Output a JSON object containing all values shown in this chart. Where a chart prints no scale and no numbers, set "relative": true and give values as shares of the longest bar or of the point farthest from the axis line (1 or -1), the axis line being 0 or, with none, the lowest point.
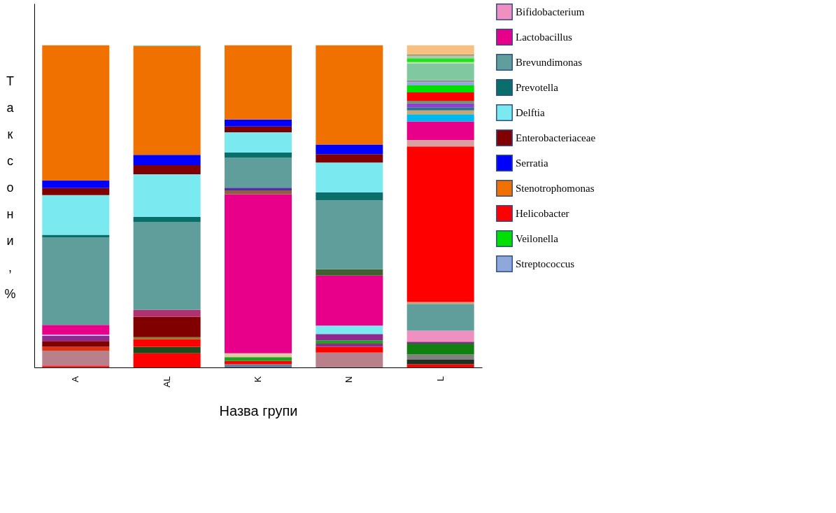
{
  "chart_data": {
    "type": "bar",
    "stacked": true,
    "relative": true,
    "xlabel": "Назва групи",
    "ylabel": "Таксони, %",
    "legend": "top right",
    "grid": false,
    "categories": [
      "A",
      "AL",
      "K",
      "N",
      "L"
    ],
    "series": [
      {
        "color": "#ff2020",
        "values": [
          0.006,
          null,
          null,
          null,
          null
        ]
      },
      {
        "color": "#b8808a",
        "values": [
          0.046,
          null,
          null,
          null,
          null
        ]
      },
      {
        "color": "#e03010",
        "values": [
          0.012,
          null,
          null,
          null,
          null
        ]
      },
      {
        "color": "#800000",
        "values": [
          0.018,
          null,
          null,
          null,
          null
        ]
      },
      {
        "color": "#902890",
        "values": [
          0.016,
          null,
          null,
          null,
          null
        ]
      },
      {
        "color": "#c0b0f0",
        "values": [
          0.004,
          null,
          null,
          null,
          null
        ]
      },
      {
        "color": "#ff0000",
        "values": [
          null,
          0.044,
          null,
          null,
          null
        ]
      },
      {
        "color": "#1a4a1a",
        "values": [
          null,
          0.02,
          null,
          null,
          null
        ]
      },
      {
        "color": "#ff0000",
        "values": [
          null,
          0.024,
          null,
          null,
          null
        ]
      },
      {
        "color": "#808030",
        "values": [
          null,
          0.006,
          null,
          null,
          null
        ]
      },
      {
        "color": "#800000",
        "values": [
          null,
          0.063,
          null,
          null,
          null
        ]
      },
      {
        "color": "#b03070",
        "values": [
          null,
          0.022,
          null,
          null,
          null
        ]
      },
      {
        "color": "#6080a0",
        "values": [
          null,
          null,
          0.01,
          null,
          null
        ]
      },
      {
        "color": "#ff0000",
        "values": [
          null,
          null,
          0.01,
          null,
          null
        ]
      },
      {
        "color": "#20a020",
        "values": [
          null,
          null,
          0.012,
          null,
          null
        ]
      },
      {
        "color": "#e0c8a0",
        "values": [
          null,
          null,
          0.012,
          null,
          null
        ]
      },
      {
        "color": "#b8808a",
        "values": [
          null,
          null,
          null,
          0.046,
          null
        ]
      },
      {
        "color": "#ff0000",
        "values": [
          null,
          null,
          null,
          0.018,
          null
        ]
      },
      {
        "color": "#902890",
        "values": [
          null,
          null,
          null,
          0.01,
          null
        ]
      },
      {
        "color": "#20a020",
        "values": [
          null,
          null,
          null,
          0.01,
          null
        ]
      },
      {
        "color": "#902890",
        "values": [
          null,
          null,
          null,
          0.02,
          null
        ]
      },
      {
        "color": "#7aeaf0",
        "values": [
          null,
          null,
          null,
          0.026,
          null
        ]
      },
      {
        "color": "#ff0000",
        "values": [
          null,
          null,
          null,
          null,
          0.01
        ]
      },
      {
        "color": "#203020",
        "values": [
          null,
          null,
          null,
          null,
          0.014
        ]
      },
      {
        "color": "#808080",
        "values": [
          null,
          null,
          null,
          null,
          0.016
        ]
      },
      {
        "color": "#108010",
        "values": [
          null,
          null,
          null,
          null,
          0.034
        ]
      },
      {
        "color": "#803080",
        "values": [
          null,
          null,
          null,
          null,
          0.006
        ]
      },
      {
        "name": "Bifidobacterium",
        "color": "#f090c0",
        "values": [
          null,
          null,
          null,
          null,
          0.034
        ]
      },
      {
        "color": "#5f9e9a",
        "values": [
          null,
          null,
          null,
          null,
          0.083
        ]
      },
      {
        "color": "#d0a080",
        "values": [
          null,
          null,
          null,
          null,
          0.006
        ]
      },
      {
        "name": "Lactobacillus",
        "color": "#e8008a",
        "values": [
          0.03,
          null,
          0.494,
          0.155,
          null
        ]
      },
      {
        "color": "#906040",
        "values": [
          null,
          null,
          0.012,
          null,
          null
        ]
      },
      {
        "color": "#5030a0",
        "values": [
          null,
          null,
          0.008,
          null,
          null
        ]
      },
      {
        "color": "#406030",
        "values": [
          null,
          null,
          null,
          0.02,
          null
        ]
      },
      {
        "name": "Brevundimonas",
        "color": "#5f9e9a",
        "values": [
          0.272,
          0.272,
          0.093,
          0.214,
          null
        ]
      },
      {
        "name": "Prevotella",
        "color": "#0a6e6a",
        "values": [
          0.008,
          0.016,
          0.016,
          0.024,
          null
        ]
      },
      {
        "name": "Delftia",
        "color": "#7aeaf0",
        "values": [
          0.123,
          0.133,
          0.063,
          0.093,
          null
        ]
      },
      {
        "name": "Enterobacteriaceae",
        "color": "#800000",
        "values": [
          0.022,
          0.028,
          0.018,
          0.026,
          null
        ]
      },
      {
        "name": "Serratia",
        "color": "#0000ff",
        "values": [
          0.024,
          0.032,
          0.022,
          0.03,
          null
        ]
      },
      {
        "name": "Stenotrophomonas",
        "color": "#f07000",
        "values": [
          0.419,
          0.338,
          0.23,
          0.308,
          null
        ]
      },
      {
        "color": "#80c8a0",
        "values": [
          null,
          0.002,
          null,
          null,
          null
        ]
      },
      {
        "name": "Helicobacter",
        "color": "#ff0000",
        "values": [
          null,
          null,
          null,
          null,
          0.483
        ]
      },
      {
        "color": "#d8a0a0",
        "values": [
          null,
          null,
          null,
          null,
          0.02
        ]
      },
      {
        "color": "#e8008a",
        "values": [
          null,
          null,
          null,
          null,
          0.058
        ]
      },
      {
        "color": "#00b8f0",
        "values": [
          null,
          null,
          null,
          null,
          0.022
        ]
      },
      {
        "color": "#c8a870",
        "values": [
          null,
          null,
          null,
          null,
          0.012
        ]
      },
      {
        "color": "#307090",
        "values": [
          null,
          null,
          null,
          null,
          0.01
        ]
      },
      {
        "color": "#9040d0",
        "values": [
          null,
          null,
          null,
          null,
          0.012
        ]
      },
      {
        "color": "#709070",
        "values": [
          null,
          null,
          null,
          null,
          0.008
        ]
      },
      {
        "color": "#ff0000",
        "values": [
          null,
          null,
          null,
          null,
          0.026
        ]
      },
      {
        "name": "Veilonella",
        "color": "#00e000",
        "values": [
          null,
          null,
          null,
          null,
          0.022
        ]
      },
      {
        "name": "Streptococcus",
        "color": "#8fa8dc",
        "values": [
          null,
          null,
          null,
          null,
          0.01
        ]
      },
      {
        "color": "#909090",
        "values": [
          null,
          null,
          null,
          null,
          0.006
        ]
      },
      {
        "color": "#80c8a0",
        "values": [
          null,
          null,
          null,
          null,
          0.052
        ]
      },
      {
        "color": "#c0e0a0",
        "values": [
          null,
          null,
          null,
          null,
          0.004
        ]
      },
      {
        "color": "#20e020",
        "values": [
          null,
          null,
          null,
          null,
          0.012
        ]
      },
      {
        "color": "#b0c8b0",
        "values": [
          null,
          null,
          null,
          null,
          0.008
        ]
      },
      {
        "color": "#8a8a60",
        "values": [
          null,
          null,
          null,
          null,
          0.004
        ]
      },
      {
        "color": "#f8c080",
        "values": [
          null,
          null,
          null,
          null,
          0.028
        ]
      }
    ]
  }
}
